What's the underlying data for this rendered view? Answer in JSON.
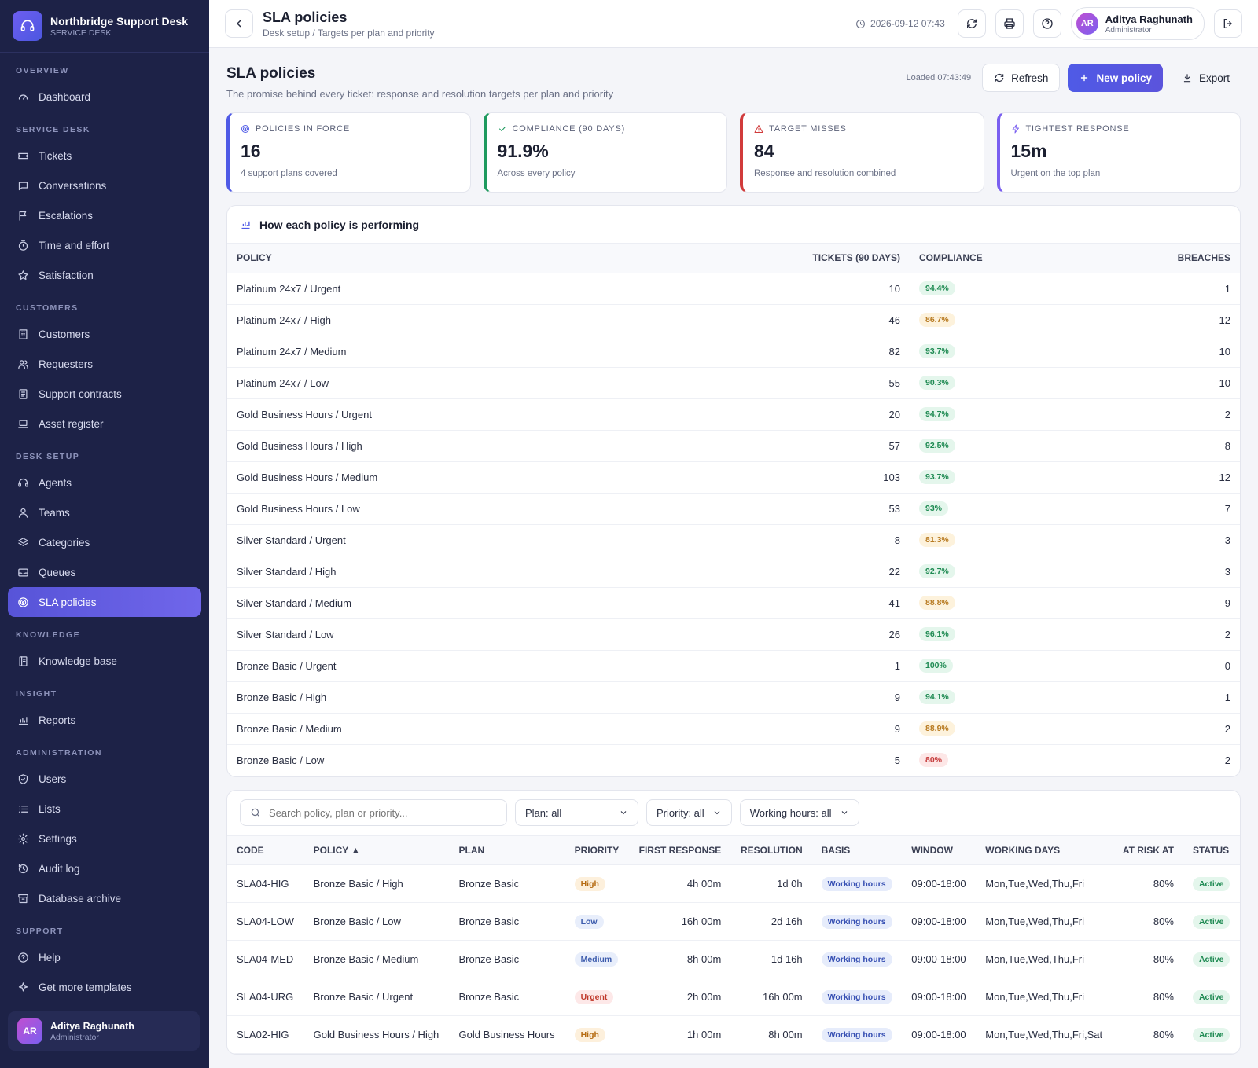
{
  "brand": {
    "title": "Northbridge Support Desk",
    "subtitle": "SERVICE DESK"
  },
  "nav": [
    {
      "section": "OVERVIEW",
      "items": [
        {
          "label": "Dashboard",
          "icon": "gauge-icon"
        }
      ]
    },
    {
      "section": "SERVICE DESK",
      "items": [
        {
          "label": "Tickets",
          "icon": "ticket-icon"
        },
        {
          "label": "Conversations",
          "icon": "chat-icon"
        },
        {
          "label": "Escalations",
          "icon": "flag-icon"
        },
        {
          "label": "Time and effort",
          "icon": "timer-icon"
        },
        {
          "label": "Satisfaction",
          "icon": "star-icon"
        }
      ]
    },
    {
      "section": "CUSTOMERS",
      "items": [
        {
          "label": "Customers",
          "icon": "building-icon"
        },
        {
          "label": "Requesters",
          "icon": "users-icon"
        },
        {
          "label": "Support contracts",
          "icon": "document-icon"
        },
        {
          "label": "Asset register",
          "icon": "laptop-icon"
        }
      ]
    },
    {
      "section": "DESK SETUP",
      "items": [
        {
          "label": "Agents",
          "icon": "headset-icon"
        },
        {
          "label": "Teams",
          "icon": "team-icon"
        },
        {
          "label": "Categories",
          "icon": "layers-icon"
        },
        {
          "label": "Queues",
          "icon": "inbox-icon"
        },
        {
          "label": "SLA policies",
          "icon": "target-icon",
          "active": true
        }
      ]
    },
    {
      "section": "KNOWLEDGE",
      "items": [
        {
          "label": "Knowledge base",
          "icon": "book-icon"
        }
      ]
    },
    {
      "section": "INSIGHT",
      "items": [
        {
          "label": "Reports",
          "icon": "bar-chart-icon"
        }
      ]
    },
    {
      "section": "ADMINISTRATION",
      "items": [
        {
          "label": "Users",
          "icon": "shield-icon"
        },
        {
          "label": "Lists",
          "icon": "list-icon"
        },
        {
          "label": "Settings",
          "icon": "gear-icon"
        },
        {
          "label": "Audit log",
          "icon": "history-icon"
        },
        {
          "label": "Database archive",
          "icon": "archive-icon"
        }
      ]
    },
    {
      "section": "SUPPORT",
      "items": [
        {
          "label": "Help",
          "icon": "help-icon"
        },
        {
          "label": "Get more templates",
          "icon": "sparkle-icon"
        }
      ]
    }
  ],
  "sidebar_user": {
    "initials": "AR",
    "name": "Aditya Raghunath",
    "role": "Administrator"
  },
  "topbar": {
    "title": "SLA policies",
    "breadcrumb": "Desk setup / Targets per plan and priority",
    "timestamp": "2026-09-12 07:43",
    "user": {
      "initials": "AR",
      "name": "Aditya Raghunath",
      "role": "Administrator"
    }
  },
  "page": {
    "title": "SLA policies",
    "subtitle": "The promise behind every ticket: response and resolution targets per plan and priority",
    "loaded": "Loaded 07:43:49",
    "refresh_label": "Refresh",
    "new_label": "New policy",
    "export_label": "Export"
  },
  "kpis": [
    {
      "label": "POLICIES IN FORCE",
      "value": "16",
      "hint": "4 support plans covered",
      "color": "#4f5ae6",
      "icon": "target-icon"
    },
    {
      "label": "COMPLIANCE (90 DAYS)",
      "value": "91.9%",
      "hint": "Across every policy",
      "color": "#1e9a5e",
      "icon": "check-icon"
    },
    {
      "label": "TARGET MISSES",
      "value": "84",
      "hint": "Response and resolution combined",
      "color": "#d13b3b",
      "icon": "warning-icon"
    },
    {
      "label": "TIGHTEST RESPONSE",
      "value": "15m",
      "hint": "Urgent on the top plan",
      "color": "#7a5ff0",
      "icon": "bolt-icon"
    }
  ],
  "performance": {
    "title": "How each policy is performing",
    "columns": [
      "POLICY",
      "TICKETS (90 DAYS)",
      "COMPLIANCE",
      "BREACHES"
    ],
    "rows": [
      {
        "policy": "Platinum 24x7 / Urgent",
        "tickets": "10",
        "compliance": "94.4%",
        "tone": "green",
        "breaches": "1"
      },
      {
        "policy": "Platinum 24x7 / High",
        "tickets": "46",
        "compliance": "86.7%",
        "tone": "amber",
        "breaches": "12"
      },
      {
        "policy": "Platinum 24x7 / Medium",
        "tickets": "82",
        "compliance": "93.7%",
        "tone": "green",
        "breaches": "10"
      },
      {
        "policy": "Platinum 24x7 / Low",
        "tickets": "55",
        "compliance": "90.3%",
        "tone": "green",
        "breaches": "10"
      },
      {
        "policy": "Gold Business Hours / Urgent",
        "tickets": "20",
        "compliance": "94.7%",
        "tone": "green",
        "breaches": "2"
      },
      {
        "policy": "Gold Business Hours / High",
        "tickets": "57",
        "compliance": "92.5%",
        "tone": "green",
        "breaches": "8"
      },
      {
        "policy": "Gold Business Hours / Medium",
        "tickets": "103",
        "compliance": "93.7%",
        "tone": "green",
        "breaches": "12"
      },
      {
        "policy": "Gold Business Hours / Low",
        "tickets": "53",
        "compliance": "93%",
        "tone": "green",
        "breaches": "7"
      },
      {
        "policy": "Silver Standard / Urgent",
        "tickets": "8",
        "compliance": "81.3%",
        "tone": "amber",
        "breaches": "3"
      },
      {
        "policy": "Silver Standard / High",
        "tickets": "22",
        "compliance": "92.7%",
        "tone": "green",
        "breaches": "3"
      },
      {
        "policy": "Silver Standard / Medium",
        "tickets": "41",
        "compliance": "88.8%",
        "tone": "amber",
        "breaches": "9"
      },
      {
        "policy": "Silver Standard / Low",
        "tickets": "26",
        "compliance": "96.1%",
        "tone": "green",
        "breaches": "2"
      },
      {
        "policy": "Bronze Basic / Urgent",
        "tickets": "1",
        "compliance": "100%",
        "tone": "green",
        "breaches": "0"
      },
      {
        "policy": "Bronze Basic / High",
        "tickets": "9",
        "compliance": "94.1%",
        "tone": "green",
        "breaches": "1"
      },
      {
        "policy": "Bronze Basic / Medium",
        "tickets": "9",
        "compliance": "88.9%",
        "tone": "amber",
        "breaches": "2"
      },
      {
        "policy": "Bronze Basic / Low",
        "tickets": "5",
        "compliance": "80%",
        "tone": "red",
        "breaches": "2"
      }
    ]
  },
  "filters": {
    "search_placeholder": "Search policy, plan or priority...",
    "plan": "Plan: all",
    "priority": "Priority: all",
    "working_hours": "Working hours: all"
  },
  "policies": {
    "columns": [
      "CODE",
      "POLICY ▲",
      "PLAN",
      "PRIORITY",
      "FIRST RESPONSE",
      "RESOLUTION",
      "BASIS",
      "WINDOW",
      "WORKING DAYS",
      "AT RISK AT",
      "STATUS"
    ],
    "rows": [
      {
        "code": "SLA04-HIG",
        "policy": "Bronze Basic / High",
        "plan": "Bronze Basic",
        "priority": "High",
        "first_response": "4h 00m",
        "resolution": "1d 0h",
        "basis": "Working hours",
        "window": "09:00-18:00",
        "days": "Mon,Tue,Wed,Thu,Fri",
        "at_risk": "80%",
        "status": "Active"
      },
      {
        "code": "SLA04-LOW",
        "policy": "Bronze Basic / Low",
        "plan": "Bronze Basic",
        "priority": "Low",
        "first_response": "16h 00m",
        "resolution": "2d 16h",
        "basis": "Working hours",
        "window": "09:00-18:00",
        "days": "Mon,Tue,Wed,Thu,Fri",
        "at_risk": "80%",
        "status": "Active"
      },
      {
        "code": "SLA04-MED",
        "policy": "Bronze Basic / Medium",
        "plan": "Bronze Basic",
        "priority": "Medium",
        "first_response": "8h 00m",
        "resolution": "1d 16h",
        "basis": "Working hours",
        "window": "09:00-18:00",
        "days": "Mon,Tue,Wed,Thu,Fri",
        "at_risk": "80%",
        "status": "Active"
      },
      {
        "code": "SLA04-URG",
        "policy": "Bronze Basic / Urgent",
        "plan": "Bronze Basic",
        "priority": "Urgent",
        "first_response": "2h 00m",
        "resolution": "16h 00m",
        "basis": "Working hours",
        "window": "09:00-18:00",
        "days": "Mon,Tue,Wed,Thu,Fri",
        "at_risk": "80%",
        "status": "Active"
      },
      {
        "code": "SLA02-HIG",
        "policy": "Gold Business Hours / High",
        "plan": "Gold Business Hours",
        "priority": "High",
        "first_response": "1h 00m",
        "resolution": "8h 00m",
        "basis": "Working hours",
        "window": "09:00-18:00",
        "days": "Mon,Tue,Wed,Thu,Fri,Sat",
        "at_risk": "80%",
        "status": "Active"
      }
    ]
  }
}
